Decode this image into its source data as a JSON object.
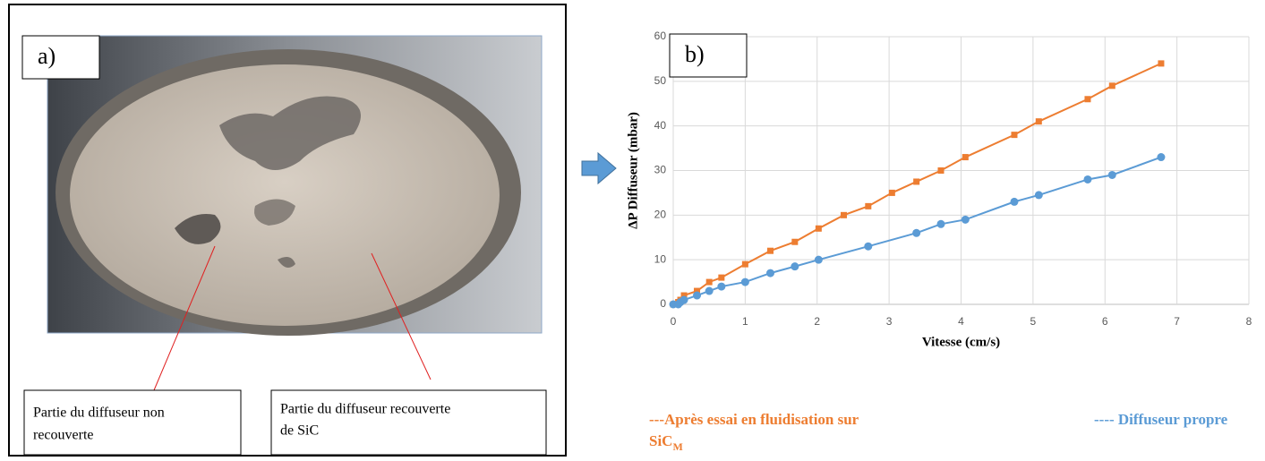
{
  "photo": {
    "label": "a)",
    "annotations": [
      [
        "Partie du diffuseur  non",
        "recouverte"
      ],
      [
        "Partie du diffuseur  recouverte",
        "de SiC"
      ]
    ]
  },
  "chart_data": {
    "type": "line",
    "label": "b)",
    "x_label": "Vitesse (cm/s)",
    "y_label": "ΔP Diffuseur (mbar)",
    "xlim": [
      0,
      8
    ],
    "xticks": [
      0,
      1,
      2,
      3,
      4,
      5,
      6,
      7,
      8
    ],
    "ylim": [
      0,
      60
    ],
    "yticks": [
      0,
      10,
      20,
      30,
      40,
      50,
      60
    ],
    "grid": true,
    "series": [
      {
        "name": "---Après essai  en fluidisation sur SiC",
        "name_subscript": "M",
        "color": "#ed7d31",
        "marker": "square",
        "x": [
          0,
          0.07,
          0.1,
          0.15,
          0.33,
          0.5,
          0.67,
          1.0,
          1.35,
          1.69,
          2.02,
          2.37,
          2.71,
          3.04,
          3.38,
          3.72,
          4.06,
          4.74,
          5.08,
          5.76,
          6.1,
          6.78
        ],
        "values": [
          0,
          0.5,
          1,
          2,
          3,
          5,
          6,
          9,
          12,
          14,
          17,
          20,
          22,
          25,
          27.5,
          30,
          33,
          38,
          41,
          46,
          49,
          54
        ]
      },
      {
        "name": "---- Diffuseur propre",
        "color": "#5b9bd5",
        "marker": "circle",
        "x": [
          0,
          0.07,
          0.1,
          0.15,
          0.33,
          0.5,
          0.67,
          1.0,
          1.35,
          1.69,
          2.02,
          2.71,
          3.38,
          3.72,
          4.06,
          4.74,
          5.08,
          5.76,
          6.1,
          6.78
        ],
        "values": [
          0,
          0,
          0.5,
          1,
          2,
          3,
          4,
          5,
          7,
          8.5,
          10,
          13,
          16,
          18,
          19,
          23,
          24.5,
          28,
          29,
          33
        ]
      }
    ]
  }
}
